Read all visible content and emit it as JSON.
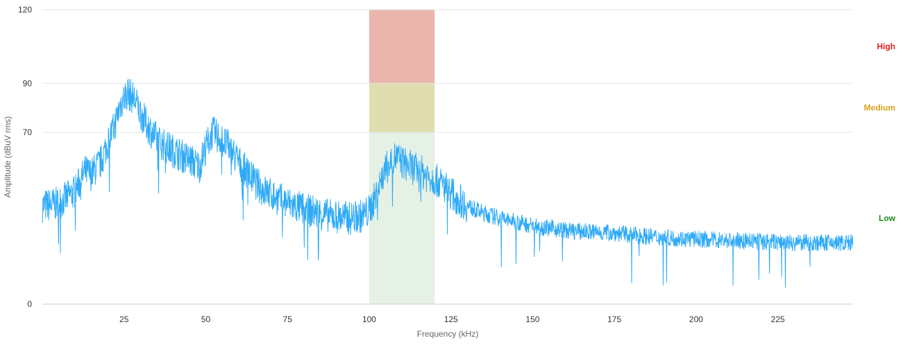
{
  "chart_data": {
    "type": "line",
    "xlabel": "Frequency (kHz)",
    "ylabel": "Amplitude (dBuV rms)",
    "xlim": [
      0,
      248
    ],
    "ylim": [
      0,
      120
    ],
    "x_ticks": [
      25,
      50,
      75,
      100,
      125,
      150,
      175,
      200,
      225
    ],
    "y_ticks": [
      0,
      70,
      90,
      120
    ],
    "grid": "horizontal",
    "legend": "none",
    "series": [
      {
        "color": "#2eaaf8",
        "points": [
          [
            0,
            40
          ],
          [
            5,
            41
          ],
          [
            10,
            46
          ],
          [
            13,
            54
          ],
          [
            15,
            53
          ],
          [
            18,
            58
          ],
          [
            20,
            66
          ],
          [
            22,
            72
          ],
          [
            24,
            82
          ],
          [
            26,
            86
          ],
          [
            28,
            84
          ],
          [
            30,
            78
          ],
          [
            32,
            73
          ],
          [
            35,
            67
          ],
          [
            38,
            64
          ],
          [
            42,
            61
          ],
          [
            46,
            58
          ],
          [
            48,
            56
          ],
          [
            50,
            64
          ],
          [
            52,
            70
          ],
          [
            54,
            68
          ],
          [
            57,
            64
          ],
          [
            60,
            58
          ],
          [
            63,
            53
          ],
          [
            67,
            47
          ],
          [
            72,
            43
          ],
          [
            77,
            40
          ],
          [
            82,
            38
          ],
          [
            88,
            36
          ],
          [
            94,
            35
          ],
          [
            98,
            36
          ],
          [
            100,
            38
          ],
          [
            102,
            44
          ],
          [
            104,
            52
          ],
          [
            106,
            57
          ],
          [
            108,
            60
          ],
          [
            111,
            57
          ],
          [
            114,
            55
          ],
          [
            117,
            53
          ],
          [
            120,
            51
          ],
          [
            123,
            48
          ],
          [
            126,
            44
          ],
          [
            130,
            40
          ],
          [
            135,
            37
          ],
          [
            140,
            35
          ],
          [
            150,
            32
          ],
          [
            160,
            30
          ],
          [
            175,
            29
          ],
          [
            190,
            27
          ],
          [
            210,
            26
          ],
          [
            230,
            25
          ],
          [
            248,
            25
          ]
        ]
      }
    ],
    "zones": [
      {
        "label": "Low",
        "from": 0,
        "to": 70,
        "color": "#e6f1e6",
        "label_color": "#1a8a1a"
      },
      {
        "label": "Medium",
        "from": 70,
        "to": 90,
        "color": "#e0ddb0",
        "label_color": "#d9a21b"
      },
      {
        "label": "High",
        "from": 90,
        "to": 120,
        "color": "#eab5ad",
        "label_color": "#e02020"
      }
    ],
    "zone_x_range": [
      100,
      120
    ]
  }
}
